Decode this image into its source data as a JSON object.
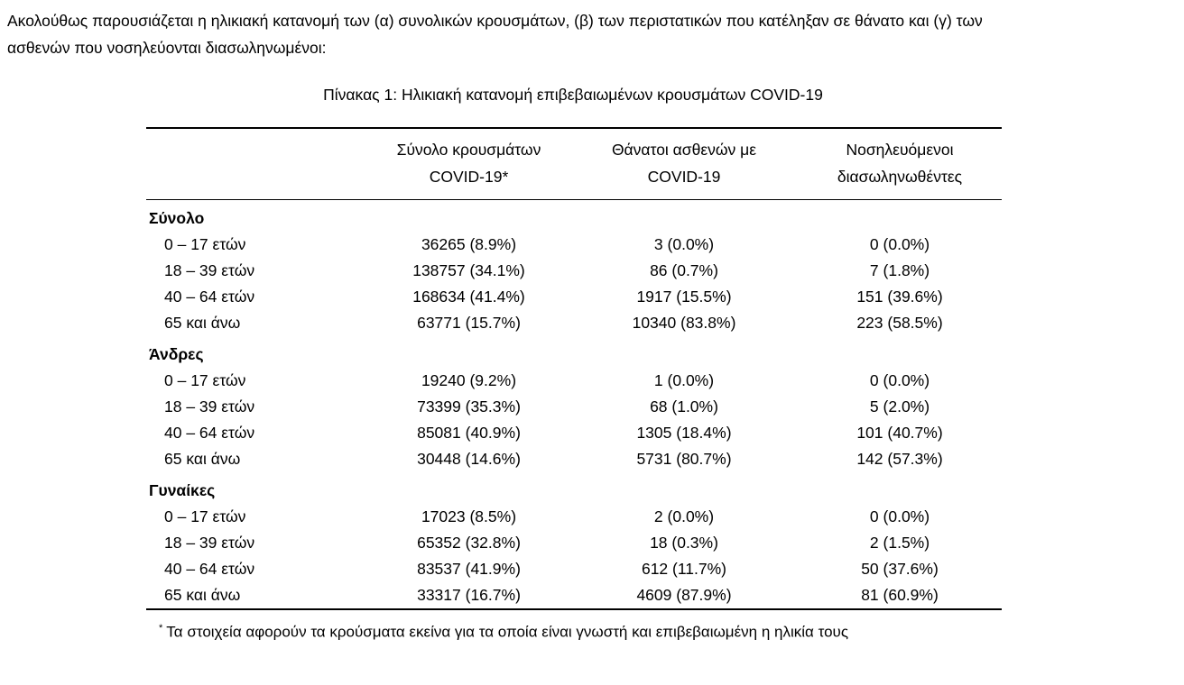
{
  "intro": "Ακολούθως παρουσιάζεται η ηλικιακή κατανομή των (α) συνολικών κρουσμάτων, (β) των περιστατικών που κατέληξαν σε θάνατο και (γ) των\nασθενών που νοσηλεύονται διασωληνωμένοι:",
  "table": {
    "title": "Πίνακας 1: Ηλικιακή κατανομή επιβεβαιωμένων κρουσμάτων COVID-19",
    "columns": [
      "Σύνολο κρουσμάτων\nCOVID-19*",
      "Θάνατοι ασθενών με\nCOVID-19",
      "Νοσηλευόμενοι\nδιασωληνωθέντες"
    ],
    "groups": [
      {
        "label": "Σύνολο",
        "rows": [
          {
            "age": "0 – 17 ετών",
            "cases": "36265 (8.9%)",
            "deaths": "3 (0.0%)",
            "intubated": "0 (0.0%)"
          },
          {
            "age": "18 – 39 ετών",
            "cases": "138757 (34.1%)",
            "deaths": "86 (0.7%)",
            "intubated": "7 (1.8%)"
          },
          {
            "age": "40 – 64 ετών",
            "cases": "168634 (41.4%)",
            "deaths": "1917 (15.5%)",
            "intubated": "151 (39.6%)"
          },
          {
            "age": "65 και άνω",
            "cases": "63771 (15.7%)",
            "deaths": "10340 (83.8%)",
            "intubated": "223 (58.5%)"
          }
        ]
      },
      {
        "label": "Άνδρες",
        "rows": [
          {
            "age": "0 – 17 ετών",
            "cases": "19240 (9.2%)",
            "deaths": "1 (0.0%)",
            "intubated": "0 (0.0%)"
          },
          {
            "age": "18 – 39 ετών",
            "cases": "73399 (35.3%)",
            "deaths": "68 (1.0%)",
            "intubated": "5 (2.0%)"
          },
          {
            "age": "40 – 64 ετών",
            "cases": "85081 (40.9%)",
            "deaths": "1305 (18.4%)",
            "intubated": "101 (40.7%)"
          },
          {
            "age": "65 και άνω",
            "cases": "30448 (14.6%)",
            "deaths": "5731 (80.7%)",
            "intubated": "142 (57.3%)"
          }
        ]
      },
      {
        "label": "Γυναίκες",
        "rows": [
          {
            "age": "0 – 17 ετών",
            "cases": "17023 (8.5%)",
            "deaths": "2 (0.0%)",
            "intubated": "0 (0.0%)"
          },
          {
            "age": "18 – 39 ετών",
            "cases": "65352 (32.8%)",
            "deaths": "18 (0.3%)",
            "intubated": "2 (1.5%)"
          },
          {
            "age": "40 – 64 ετών",
            "cases": "83537 (41.9%)",
            "deaths": "612 (11.7%)",
            "intubated": "50 (37.6%)"
          },
          {
            "age": "65 και άνω",
            "cases": "33317 (16.7%)",
            "deaths": "4609 (87.9%)",
            "intubated": "81 (60.9%)"
          }
        ]
      }
    ],
    "footnote_marker": "*",
    "footnote_text": "Τα στοιχεία αφορούν τα κρούσματα εκείνα για τα οποία είναι γνωστή και επιβεβαιωμένη η ηλικία τους"
  }
}
